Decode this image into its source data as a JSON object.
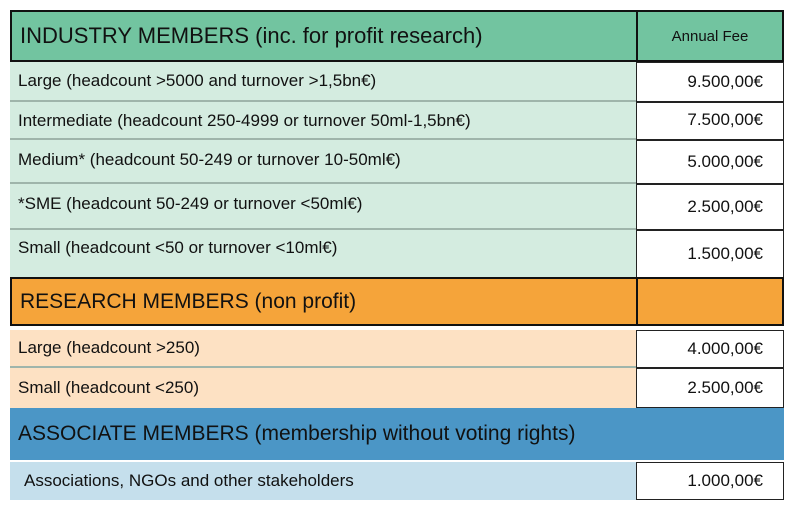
{
  "colors": {
    "industry_header": "#72c4a0",
    "industry_row": "#d4ece0",
    "research_header": "#f5a43a",
    "research_row": "#fde1c3",
    "associate_header": "#4b96c6",
    "associate_row": "#c5dfec"
  },
  "column_header": "Annual Fee",
  "industry": {
    "header": "INDUSTRY MEMBERS (inc. for profit research)",
    "rows": [
      {
        "label": "Large (headcount >5000 and turnover >1,5bn€)",
        "fee": "9.500,00€"
      },
      {
        "label": "Intermediate (headcount 250-4999 or turnover 50ml-1,5bn€)",
        "fee": "7.500,00€"
      },
      {
        "label": "Medium*  (headcount 50-249 or turnover 10-50ml€)",
        "fee": "5.000,00€"
      },
      {
        "label": "*SME  (headcount 50-249 or turnover <50ml€)",
        "fee": "2.500,00€"
      },
      {
        "label": "Small (headcount <50 or turnover <10ml€)",
        "fee": "1.500,00€"
      }
    ]
  },
  "research": {
    "header": "RESEARCH MEMBERS (non profit)",
    "rows": [
      {
        "label": "Large (headcount >250)",
        "fee": "4.000,00€"
      },
      {
        "label": "Small (headcount <250)",
        "fee": "2.500,00€"
      }
    ]
  },
  "associate": {
    "header": "ASSOCIATE MEMBERS (membership without voting rights)",
    "rows": [
      {
        "label": "Associations, NGOs and other stakeholders",
        "fee": "1.000,00€"
      }
    ]
  }
}
